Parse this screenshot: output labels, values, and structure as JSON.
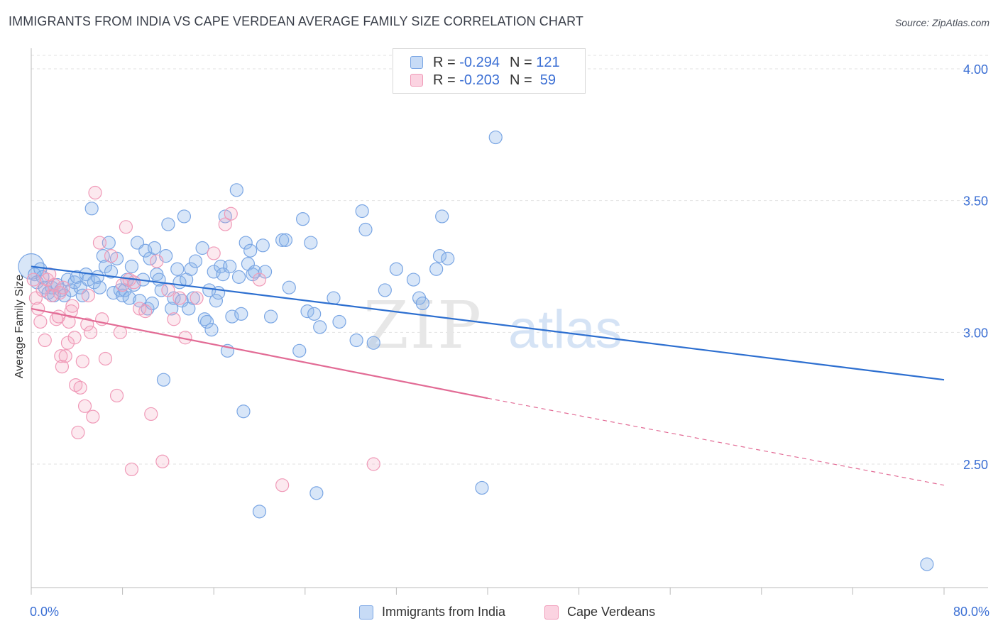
{
  "title": "IMMIGRANTS FROM INDIA VS CAPE VERDEAN AVERAGE FAMILY SIZE CORRELATION CHART",
  "source": "Source: ZipAtlas.com",
  "watermark": {
    "part1": "ZIP",
    "part2": "atlas"
  },
  "legend_stats": [
    {
      "r_label": "R =",
      "r_value": "-0.294",
      "n_label": "N =",
      "n_value": "121",
      "color": "#8fb6ea"
    },
    {
      "r_label": "R =",
      "r_value": "-0.203",
      "n_label": "N =",
      "n_value": "59",
      "color": "#f3a6c0"
    }
  ],
  "chart_data": {
    "type": "scatter",
    "title": "IMMIGRANTS FROM INDIA VS CAPE VERDEAN AVERAGE FAMILY SIZE CORRELATION CHART",
    "xlabel": "",
    "ylabel": "Average Family Size",
    "xlim": [
      0,
      80
    ],
    "ylim": [
      2.0,
      4.05
    ],
    "x_tick_labels": [
      "0.0%",
      "80.0%"
    ],
    "y_ticks": [
      2.5,
      3.0,
      3.5,
      4.0
    ],
    "y_tick_labels": [
      "2.50",
      "3.00",
      "3.50",
      "4.00"
    ],
    "grid": "horizontal dashed",
    "legend_position": "bottom",
    "series": [
      {
        "name": "Immigrants from India",
        "color": "#8fb6ea",
        "line_color": "#2d6fd0",
        "trend": {
          "x": [
            0,
            80
          ],
          "y": [
            3.25,
            2.82
          ]
        },
        "points": [
          [
            0,
            3.25
          ],
          [
            0.3,
            3.22
          ],
          [
            0.5,
            3.19
          ],
          [
            0.8,
            3.24
          ],
          [
            1.0,
            3.21
          ],
          [
            1.2,
            3.17
          ],
          [
            1.5,
            3.15
          ],
          [
            1.8,
            3.17
          ],
          [
            2.0,
            3.14
          ],
          [
            2.3,
            3.18
          ],
          [
            2.6,
            3.16
          ],
          [
            2.9,
            3.14
          ],
          [
            3.2,
            3.2
          ],
          [
            3.5,
            3.16
          ],
          [
            3.8,
            3.19
          ],
          [
            4.0,
            3.21
          ],
          [
            4.3,
            3.17
          ],
          [
            4.5,
            3.14
          ],
          [
            4.8,
            3.22
          ],
          [
            5.0,
            3.2
          ],
          [
            5.3,
            3.47
          ],
          [
            5.5,
            3.19
          ],
          [
            5.8,
            3.21
          ],
          [
            6.0,
            3.17
          ],
          [
            6.3,
            3.29
          ],
          [
            6.5,
            3.25
          ],
          [
            6.8,
            3.34
          ],
          [
            7.0,
            3.23
          ],
          [
            7.2,
            3.15
          ],
          [
            7.5,
            3.28
          ],
          [
            7.8,
            3.16
          ],
          [
            8.0,
            3.14
          ],
          [
            8.2,
            3.16
          ],
          [
            8.4,
            3.2
          ],
          [
            8.6,
            3.13
          ],
          [
            8.8,
            3.25
          ],
          [
            9.0,
            3.18
          ],
          [
            9.3,
            3.34
          ],
          [
            9.5,
            3.12
          ],
          [
            9.8,
            3.2
          ],
          [
            10.0,
            3.31
          ],
          [
            10.2,
            3.09
          ],
          [
            10.4,
            3.28
          ],
          [
            10.6,
            3.11
          ],
          [
            10.8,
            3.32
          ],
          [
            11.0,
            3.22
          ],
          [
            11.2,
            3.2
          ],
          [
            11.4,
            3.16
          ],
          [
            11.6,
            2.82
          ],
          [
            11.8,
            3.29
          ],
          [
            12.0,
            3.41
          ],
          [
            12.3,
            3.09
          ],
          [
            12.5,
            3.13
          ],
          [
            12.8,
            3.24
          ],
          [
            13.0,
            3.19
          ],
          [
            13.2,
            3.12
          ],
          [
            13.4,
            3.44
          ],
          [
            13.6,
            3.2
          ],
          [
            13.8,
            3.09
          ],
          [
            14.0,
            3.24
          ],
          [
            14.2,
            3.13
          ],
          [
            14.4,
            3.27
          ],
          [
            15.0,
            3.32
          ],
          [
            15.2,
            3.05
          ],
          [
            15.4,
            3.04
          ],
          [
            15.6,
            3.16
          ],
          [
            15.8,
            3.01
          ],
          [
            16.0,
            3.23
          ],
          [
            16.2,
            3.12
          ],
          [
            16.4,
            3.15
          ],
          [
            16.6,
            3.25
          ],
          [
            16.8,
            3.22
          ],
          [
            17.0,
            3.44
          ],
          [
            17.2,
            2.93
          ],
          [
            17.4,
            3.25
          ],
          [
            17.6,
            3.06
          ],
          [
            18.0,
            3.54
          ],
          [
            18.2,
            3.21
          ],
          [
            18.4,
            3.07
          ],
          [
            18.6,
            2.7
          ],
          [
            18.8,
            3.34
          ],
          [
            19.0,
            3.26
          ],
          [
            19.2,
            3.31
          ],
          [
            19.4,
            3.22
          ],
          [
            19.6,
            3.23
          ],
          [
            20.0,
            2.32
          ],
          [
            20.3,
            3.33
          ],
          [
            20.5,
            3.23
          ],
          [
            21.0,
            3.06
          ],
          [
            22.0,
            3.35
          ],
          [
            22.3,
            3.35
          ],
          [
            22.6,
            3.17
          ],
          [
            23.5,
            2.93
          ],
          [
            23.8,
            3.43
          ],
          [
            24.2,
            3.08
          ],
          [
            24.5,
            3.34
          ],
          [
            24.8,
            3.07
          ],
          [
            25.0,
            2.39
          ],
          [
            25.3,
            3.02
          ],
          [
            26.5,
            3.13
          ],
          [
            27.0,
            3.04
          ],
          [
            28.5,
            2.97
          ],
          [
            29.0,
            3.46
          ],
          [
            29.3,
            3.39
          ],
          [
            30.0,
            2.96
          ],
          [
            31.0,
            3.16
          ],
          [
            32.0,
            3.24
          ],
          [
            33.5,
            3.2
          ],
          [
            34.0,
            3.13
          ],
          [
            34.3,
            3.11
          ],
          [
            35.5,
            3.24
          ],
          [
            35.8,
            3.29
          ],
          [
            36.0,
            3.44
          ],
          [
            36.5,
            3.28
          ],
          [
            39.5,
            2.41
          ],
          [
            40.7,
            3.74
          ],
          [
            78.5,
            2.12
          ]
        ]
      },
      {
        "name": "Cape Verdeans",
        "color": "#f3a6c0",
        "line_color": "#e26b95",
        "trend": {
          "x": [
            0,
            40
          ],
          "y": [
            3.09,
            2.75
          ]
        },
        "trend_extension": {
          "x": [
            40,
            80
          ],
          "y": [
            2.75,
            2.42
          ]
        },
        "points": [
          [
            0.2,
            3.2
          ],
          [
            0.4,
            3.13
          ],
          [
            0.6,
            3.09
          ],
          [
            0.8,
            3.04
          ],
          [
            1.0,
            3.16
          ],
          [
            1.2,
            2.97
          ],
          [
            1.4,
            3.2
          ],
          [
            1.6,
            3.22
          ],
          [
            1.8,
            3.14
          ],
          [
            2.0,
            3.18
          ],
          [
            2.2,
            3.05
          ],
          [
            2.4,
            3.06
          ],
          [
            2.5,
            3.15
          ],
          [
            2.6,
            2.91
          ],
          [
            2.7,
            2.87
          ],
          [
            2.8,
            3.17
          ],
          [
            3.0,
            2.91
          ],
          [
            3.2,
            2.96
          ],
          [
            3.3,
            3.04
          ],
          [
            3.5,
            3.08
          ],
          [
            3.6,
            3.1
          ],
          [
            3.8,
            2.98
          ],
          [
            3.9,
            2.8
          ],
          [
            4.1,
            2.62
          ],
          [
            4.3,
            2.79
          ],
          [
            4.5,
            2.89
          ],
          [
            4.7,
            2.72
          ],
          [
            4.9,
            3.03
          ],
          [
            5.0,
            3.14
          ],
          [
            5.2,
            3.0
          ],
          [
            5.4,
            2.68
          ],
          [
            5.6,
            3.53
          ],
          [
            6.0,
            3.34
          ],
          [
            6.2,
            3.05
          ],
          [
            6.5,
            2.9
          ],
          [
            7.0,
            3.29
          ],
          [
            7.5,
            2.76
          ],
          [
            7.8,
            3.0
          ],
          [
            8.0,
            3.18
          ],
          [
            8.3,
            3.4
          ],
          [
            8.6,
            3.2
          ],
          [
            8.8,
            2.48
          ],
          [
            9.0,
            3.19
          ],
          [
            9.5,
            3.09
          ],
          [
            10.0,
            3.08
          ],
          [
            10.5,
            2.69
          ],
          [
            11.0,
            3.27
          ],
          [
            11.5,
            2.51
          ],
          [
            12.0,
            3.16
          ],
          [
            12.5,
            3.05
          ],
          [
            13.0,
            3.13
          ],
          [
            13.5,
            2.98
          ],
          [
            14.5,
            3.13
          ],
          [
            16.0,
            3.3
          ],
          [
            17.0,
            3.41
          ],
          [
            17.5,
            3.45
          ],
          [
            20.0,
            3.2
          ],
          [
            22.0,
            2.42
          ],
          [
            30.0,
            2.5
          ]
        ]
      }
    ]
  }
}
